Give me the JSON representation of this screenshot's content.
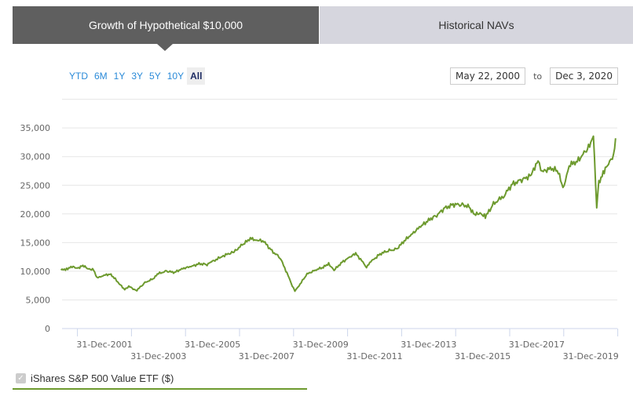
{
  "tabs": [
    {
      "label": "Growth of Hypothetical $10,000",
      "active": true
    },
    {
      "label": "Historical NAVs",
      "active": false
    }
  ],
  "range_buttons": [
    "YTD",
    "6M",
    "1Y",
    "3Y",
    "5Y",
    "10Y",
    "All"
  ],
  "selected_range": "All",
  "date_range": {
    "from": "May 22, 2000",
    "to_label": "to",
    "to": "Dec 3, 2020"
  },
  "legend": {
    "label": "iShares S&P 500 Value ETF ($)",
    "checked": true,
    "color": "#6d9a2e"
  },
  "colors": {
    "line": "#6d9a2e",
    "tab_active": "#5f5f5f",
    "tab_inactive": "#d6d6de",
    "link": "#2a8ad8"
  },
  "chart_data": {
    "type": "line",
    "title": "Growth of Hypothetical $10,000",
    "xlabel": "",
    "ylabel": "",
    "ylim": [
      0,
      40000
    ],
    "yticks": [
      "0",
      "5,000",
      "10,000",
      "15,000",
      "20,000",
      "25,000",
      "30,000",
      "35,000"
    ],
    "xticks": [
      "31-Dec-2001",
      "31-Dec-2003",
      "31-Dec-2005",
      "31-Dec-2007",
      "31-Dec-2009",
      "31-Dec-2011",
      "31-Dec-2013",
      "31-Dec-2015",
      "31-Dec-2017",
      "31-Dec-2019"
    ],
    "grid": true,
    "legend_position": "bottom-left",
    "series": [
      {
        "name": "iShares S&P 500 Value ETF ($)",
        "x": [
          2000.39,
          2000.6,
          2000.8,
          2001.0,
          2001.2,
          2001.4,
          2001.6,
          2001.72,
          2001.9,
          2002.2,
          2002.4,
          2002.55,
          2002.75,
          2002.9,
          2003.1,
          2003.2,
          2003.5,
          2003.8,
          2004.0,
          2004.3,
          2004.6,
          2004.9,
          2005.2,
          2005.5,
          2005.8,
          2006.0,
          2006.4,
          2006.8,
          2007.1,
          2007.4,
          2007.6,
          2007.9,
          2008.2,
          2008.5,
          2008.8,
          2008.9,
          2009.05,
          2009.2,
          2009.5,
          2009.8,
          2010.1,
          2010.3,
          2010.5,
          2010.8,
          2011.1,
          2011.3,
          2011.7,
          2011.9,
          2012.2,
          2012.5,
          2012.8,
          2013.1,
          2013.4,
          2013.7,
          2014.0,
          2014.3,
          2014.6,
          2014.9,
          2015.2,
          2015.5,
          2015.7,
          2015.9,
          2016.1,
          2016.4,
          2016.8,
          2017.1,
          2017.4,
          2017.8,
          2018.05,
          2018.2,
          2018.5,
          2018.8,
          2018.97,
          2019.2,
          2019.5,
          2019.8,
          2020.0,
          2020.1,
          2020.22,
          2020.3,
          2020.5,
          2020.7,
          2020.85,
          2020.92
        ],
        "values": [
          10200,
          10400,
          10800,
          10500,
          11000,
          10400,
          10300,
          8800,
          9200,
          9500,
          8700,
          7800,
          6800,
          7400,
          6800,
          6700,
          8000,
          8700,
          9600,
          10000,
          9800,
          10500,
          10800,
          11300,
          11200,
          11700,
          12700,
          13400,
          14600,
          15700,
          15500,
          15200,
          13500,
          12400,
          9200,
          8000,
          6500,
          7500,
          9500,
          10200,
          10700,
          11300,
          10200,
          11600,
          12500,
          13100,
          10800,
          11800,
          13000,
          13600,
          13800,
          15300,
          16600,
          17800,
          18900,
          19800,
          21000,
          21600,
          21700,
          21200,
          19800,
          20200,
          19500,
          21700,
          23300,
          25200,
          25800,
          26800,
          29500,
          27300,
          28000,
          27500,
          24200,
          28500,
          29200,
          30800,
          32200,
          34000,
          21000,
          25500,
          27500,
          29000,
          30500,
          33200
        ]
      }
    ]
  }
}
